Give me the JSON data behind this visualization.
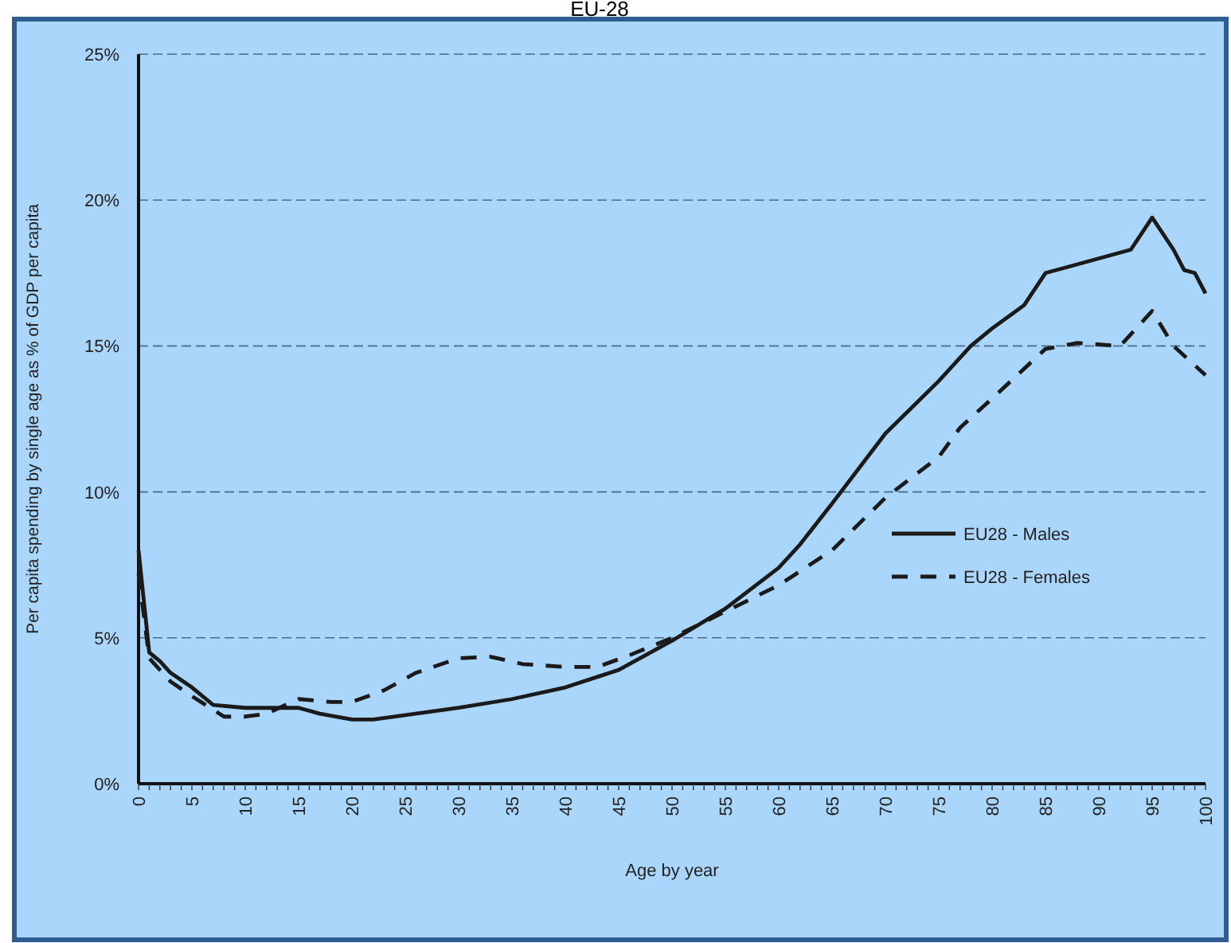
{
  "chart_data": {
    "type": "line",
    "title": "EU-28",
    "xlabel": "Age by year",
    "ylabel": "Per capita spending by single age as % of GDP per capita",
    "xlim": [
      0,
      100
    ],
    "xticks": [
      0,
      5,
      10,
      15,
      20,
      25,
      30,
      35,
      40,
      45,
      50,
      55,
      60,
      65,
      70,
      75,
      80,
      85,
      90,
      95,
      100
    ],
    "ylim": [
      0,
      25
    ],
    "yticks": [
      {
        "value": 0,
        "label": "0%"
      },
      {
        "value": 5,
        "label": "5%"
      },
      {
        "value": 10,
        "label": "10%"
      },
      {
        "value": 15,
        "label": "15%"
      },
      {
        "value": 20,
        "label": "20%"
      },
      {
        "value": 25,
        "label": "25%"
      }
    ],
    "grid": "y",
    "legend": "right",
    "marker": "none",
    "series": [
      {
        "name": "EU28 - Males",
        "color": "#1a1a1a",
        "line_style": "solid",
        "x": [
          0,
          1,
          2,
          3,
          5,
          7,
          10,
          15,
          17,
          20,
          22,
          25,
          30,
          35,
          40,
          45,
          50,
          55,
          60,
          62,
          65,
          70,
          75,
          78,
          80,
          83,
          85,
          87,
          90,
          93,
          95,
          97,
          98,
          99,
          100
        ],
        "values": [
          8.0,
          4.5,
          4.2,
          3.8,
          3.3,
          2.7,
          2.6,
          2.6,
          2.4,
          2.2,
          2.2,
          2.35,
          2.6,
          2.9,
          3.3,
          3.9,
          4.9,
          6.0,
          7.4,
          8.2,
          9.6,
          12.0,
          13.8,
          15.0,
          15.6,
          16.4,
          17.5,
          17.7,
          18.0,
          18.3,
          19.4,
          18.3,
          17.6,
          17.5,
          16.8
        ]
      },
      {
        "name": "EU28 - Females",
        "color": "#1a1a1a",
        "line_style": "dashed",
        "x": [
          0,
          1,
          3,
          5,
          8,
          10,
          12,
          15,
          18,
          20,
          23,
          26,
          30,
          33,
          36,
          40,
          43,
          46,
          50,
          55,
          60,
          65,
          70,
          75,
          77,
          80,
          85,
          88,
          92,
          95,
          97,
          100
        ],
        "values": [
          7.2,
          4.3,
          3.5,
          3.0,
          2.3,
          2.3,
          2.4,
          2.9,
          2.8,
          2.8,
          3.2,
          3.8,
          4.3,
          4.35,
          4.1,
          4.0,
          4.0,
          4.4,
          5.0,
          5.9,
          6.8,
          8.0,
          9.8,
          11.2,
          12.2,
          13.2,
          14.9,
          15.1,
          15.0,
          16.2,
          15.0,
          14.0
        ]
      }
    ]
  }
}
